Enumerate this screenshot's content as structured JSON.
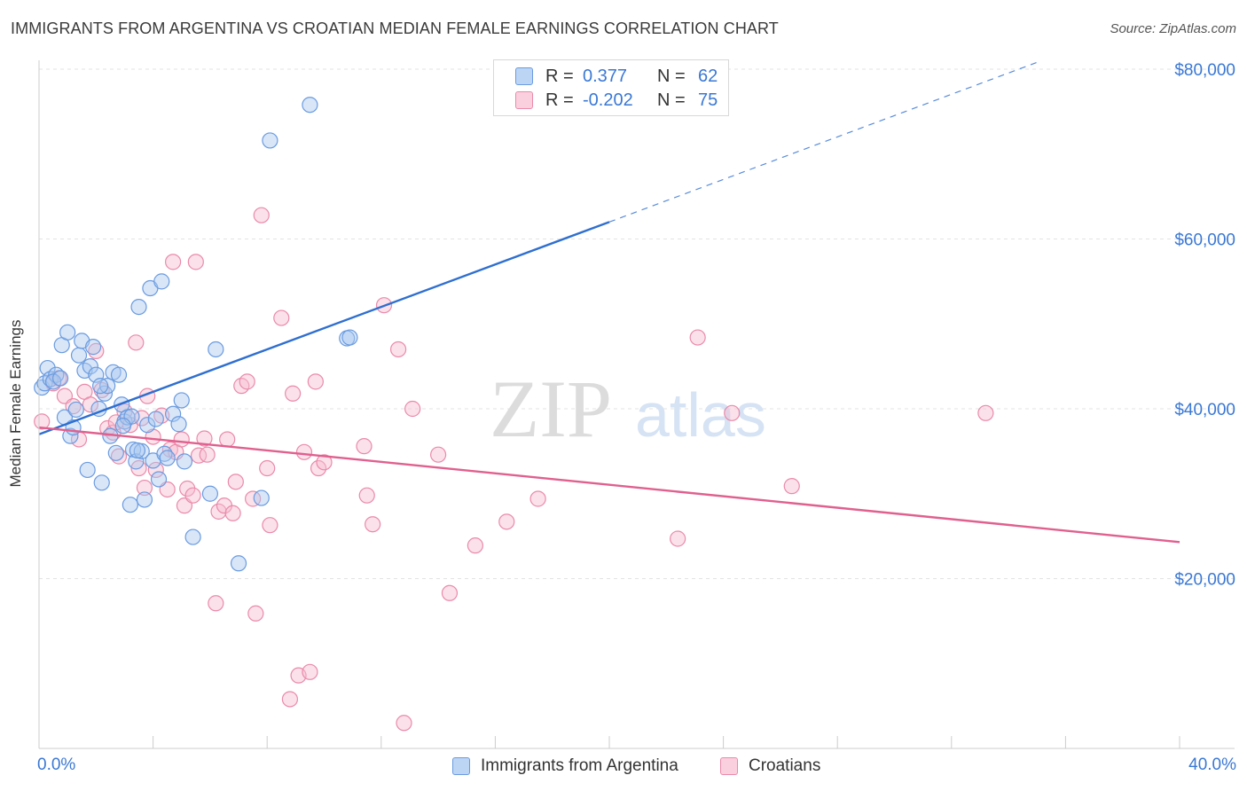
{
  "title": "IMMIGRANTS FROM ARGENTINA VS CROATIAN MEDIAN FEMALE EARNINGS CORRELATION CHART",
  "source": "Source: ZipAtlas.com",
  "watermark": {
    "zip": "ZIP",
    "atlas": "atlas"
  },
  "colors": {
    "blue_fill": "#a9c8f0",
    "blue_stroke": "#6a9be0",
    "blue_line": "#2f6fd0",
    "pink_fill": "#f7bcd0",
    "pink_stroke": "#ea8aaa",
    "pink_line": "#e0608e",
    "grid": "#e3e3e3",
    "axis_text": "#3a78d4"
  },
  "legend": {
    "rows": [
      {
        "r_label": "R =",
        "r_value": "0.377",
        "n_label": "N =",
        "n_value": "62"
      },
      {
        "r_label": "R =",
        "r_value": "-0.202",
        "n_label": "N =",
        "n_value": "75"
      }
    ]
  },
  "chart_data": {
    "type": "scatter",
    "title": "IMMIGRANTS FROM ARGENTINA VS CROATIAN MEDIAN FEMALE EARNINGS CORRELATION CHART",
    "xlabel": "",
    "ylabel": "Median Female Earnings",
    "xlim": [
      0,
      40
    ],
    "ylim": [
      0,
      80000
    ],
    "x_tick_labels": {
      "left": "0.0%",
      "right": "40.0%"
    },
    "y_ticks": [
      {
        "value": 20000,
        "label": "$20,000"
      },
      {
        "value": 40000,
        "label": "$40,000"
      },
      {
        "value": 60000,
        "label": "$60,000"
      },
      {
        "value": 80000,
        "label": "$80,000"
      }
    ],
    "series": [
      {
        "name": "Immigrants from Argentina",
        "color": "#a9c8f0",
        "trend": {
          "x0": 0,
          "y0": 37000,
          "x1": 20,
          "y1": 62000,
          "dashed_to_x": 35,
          "dashed_to_y": 80800
        },
        "points": [
          [
            0.1,
            42500
          ],
          [
            0.2,
            43000
          ],
          [
            0.3,
            44800
          ],
          [
            0.4,
            43500
          ],
          [
            0.6,
            44000
          ],
          [
            0.8,
            47500
          ],
          [
            0.9,
            39000
          ],
          [
            1.0,
            49000
          ],
          [
            1.1,
            36800
          ],
          [
            1.2,
            37800
          ],
          [
            1.4,
            46300
          ],
          [
            1.5,
            48000
          ],
          [
            1.6,
            44500
          ],
          [
            1.7,
            32800
          ],
          [
            1.8,
            45000
          ],
          [
            1.9,
            47300
          ],
          [
            2.0,
            44000
          ],
          [
            2.1,
            40000
          ],
          [
            2.2,
            31300
          ],
          [
            2.3,
            41800
          ],
          [
            2.4,
            42700
          ],
          [
            2.5,
            36800
          ],
          [
            2.6,
            44300
          ],
          [
            2.7,
            34800
          ],
          [
            2.8,
            44000
          ],
          [
            2.9,
            40500
          ],
          [
            3.0,
            38500
          ],
          [
            3.1,
            39000
          ],
          [
            3.2,
            28700
          ],
          [
            3.3,
            35200
          ],
          [
            3.4,
            33800
          ],
          [
            3.5,
            52000
          ],
          [
            3.6,
            35000
          ],
          [
            3.7,
            29300
          ],
          [
            3.8,
            38100
          ],
          [
            3.9,
            54200
          ],
          [
            4.0,
            33900
          ],
          [
            4.1,
            38800
          ],
          [
            4.2,
            31700
          ],
          [
            4.3,
            55000
          ],
          [
            4.4,
            34700
          ],
          [
            4.5,
            34200
          ],
          [
            4.7,
            39400
          ],
          [
            4.9,
            38200
          ],
          [
            5.0,
            41000
          ],
          [
            5.1,
            33800
          ],
          [
            5.4,
            24900
          ],
          [
            6.0,
            30000
          ],
          [
            6.2,
            47000
          ],
          [
            7.0,
            21800
          ],
          [
            7.8,
            29500
          ],
          [
            8.1,
            71600
          ],
          [
            9.5,
            75800
          ],
          [
            10.8,
            48300
          ],
          [
            10.9,
            48400
          ],
          [
            0.5,
            43200
          ],
          [
            1.3,
            39900
          ],
          [
            2.15,
            42700
          ],
          [
            3.25,
            39100
          ],
          [
            3.45,
            35100
          ],
          [
            2.95,
            38000
          ],
          [
            0.75,
            43600
          ]
        ]
      },
      {
        "name": "Croatians",
        "color": "#f7bcd0",
        "trend": {
          "x0": 0,
          "y0": 37800,
          "x1": 40,
          "y1": 24300
        },
        "points": [
          [
            0.1,
            38500
          ],
          [
            0.5,
            43000
          ],
          [
            0.7,
            43600
          ],
          [
            0.9,
            41500
          ],
          [
            1.2,
            40300
          ],
          [
            1.4,
            36400
          ],
          [
            1.6,
            42000
          ],
          [
            1.8,
            40500
          ],
          [
            2.0,
            46800
          ],
          [
            2.2,
            42200
          ],
          [
            2.4,
            37700
          ],
          [
            2.6,
            37200
          ],
          [
            2.8,
            34400
          ],
          [
            3.0,
            39700
          ],
          [
            3.2,
            38100
          ],
          [
            3.4,
            47800
          ],
          [
            3.5,
            33000
          ],
          [
            3.6,
            38900
          ],
          [
            3.7,
            30700
          ],
          [
            3.8,
            41500
          ],
          [
            4.0,
            36700
          ],
          [
            4.1,
            32800
          ],
          [
            4.3,
            39200
          ],
          [
            4.5,
            30500
          ],
          [
            4.6,
            35200
          ],
          [
            4.7,
            57300
          ],
          [
            4.8,
            34900
          ],
          [
            5.0,
            36400
          ],
          [
            5.1,
            28600
          ],
          [
            5.2,
            30600
          ],
          [
            5.4,
            29800
          ],
          [
            5.5,
            57300
          ],
          [
            5.6,
            34500
          ],
          [
            5.8,
            36500
          ],
          [
            5.9,
            34600
          ],
          [
            6.2,
            17100
          ],
          [
            6.3,
            27900
          ],
          [
            6.5,
            28600
          ],
          [
            6.8,
            27700
          ],
          [
            6.9,
            31400
          ],
          [
            7.1,
            42700
          ],
          [
            7.3,
            43200
          ],
          [
            7.5,
            29400
          ],
          [
            7.6,
            15900
          ],
          [
            7.8,
            62800
          ],
          [
            8.0,
            33000
          ],
          [
            8.1,
            26300
          ],
          [
            8.5,
            50700
          ],
          [
            8.8,
            5800
          ],
          [
            8.9,
            41800
          ],
          [
            9.1,
            8600
          ],
          [
            9.3,
            34900
          ],
          [
            9.5,
            9000
          ],
          [
            9.7,
            43200
          ],
          [
            9.8,
            33000
          ],
          [
            10.0,
            33700
          ],
          [
            11.4,
            35600
          ],
          [
            11.5,
            29800
          ],
          [
            11.7,
            26400
          ],
          [
            12.1,
            52200
          ],
          [
            12.6,
            47000
          ],
          [
            12.8,
            3000
          ],
          [
            13.1,
            40000
          ],
          [
            14.0,
            34600
          ],
          [
            14.4,
            18300
          ],
          [
            15.3,
            23900
          ],
          [
            16.4,
            26700
          ],
          [
            17.5,
            29400
          ],
          [
            22.4,
            24700
          ],
          [
            23.1,
            48400
          ],
          [
            24.3,
            39500
          ],
          [
            26.4,
            30900
          ],
          [
            33.2,
            39500
          ],
          [
            2.7,
            38400
          ],
          [
            6.6,
            36400
          ]
        ]
      }
    ]
  },
  "bottom_legend": [
    {
      "label": "Immigrants from Argentina"
    },
    {
      "label": "Croatians"
    }
  ]
}
